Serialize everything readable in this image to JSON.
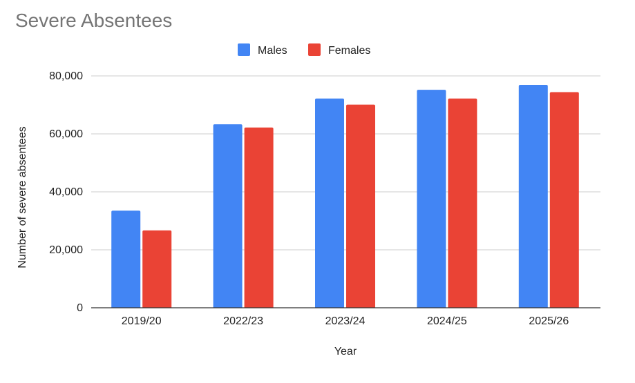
{
  "chart_data": {
    "type": "bar",
    "title": "Severe Absentees",
    "xlabel": "Year",
    "ylabel": "Number of severe absentees",
    "categories": [
      "2019/20",
      "2022/23",
      "2023/24",
      "2024/25",
      "2025/26"
    ],
    "series": [
      {
        "name": "Males",
        "color": "#4285f4",
        "values": [
          33500,
          63300,
          72200,
          75200,
          76900
        ]
      },
      {
        "name": "Females",
        "color": "#ea4335",
        "values": [
          26700,
          62200,
          70100,
          72200,
          74400
        ]
      }
    ],
    "ylim": [
      0,
      80000
    ],
    "yticks": [
      "0",
      "20,000",
      "40,000",
      "60,000",
      "80,000"
    ],
    "ytick_values": [
      0,
      20000,
      40000,
      60000,
      80000
    ],
    "grid": true,
    "legend": "top-center"
  }
}
